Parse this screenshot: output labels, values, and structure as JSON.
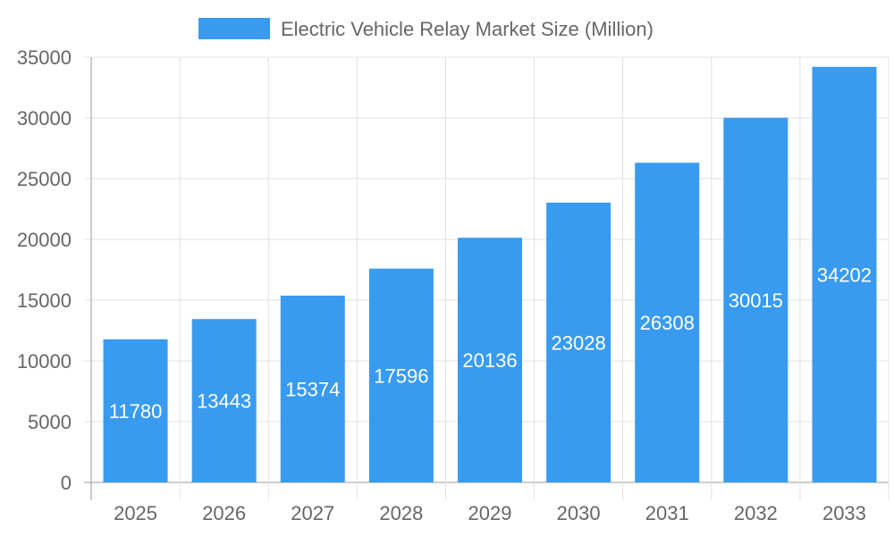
{
  "chart_data": {
    "type": "bar",
    "categories": [
      "2025",
      "2026",
      "2027",
      "2028",
      "2029",
      "2030",
      "2031",
      "2032",
      "2033"
    ],
    "series": [
      {
        "name": "Electric Vehicle Relay Market Size (Million)",
        "values": [
          11780,
          13443,
          15374,
          17596,
          20136,
          23028,
          26308,
          30015,
          34202
        ]
      }
    ],
    "ylim": [
      0,
      35000
    ],
    "yticks": [
      0,
      5000,
      10000,
      15000,
      20000,
      25000,
      30000,
      35000
    ],
    "grid": true,
    "legend": "top",
    "data_labels": true,
    "colors": {
      "bar": "#399bef",
      "grid": "#e0e0e0",
      "axis": "#999999",
      "text": "#666666",
      "label": "#ffffff"
    }
  }
}
